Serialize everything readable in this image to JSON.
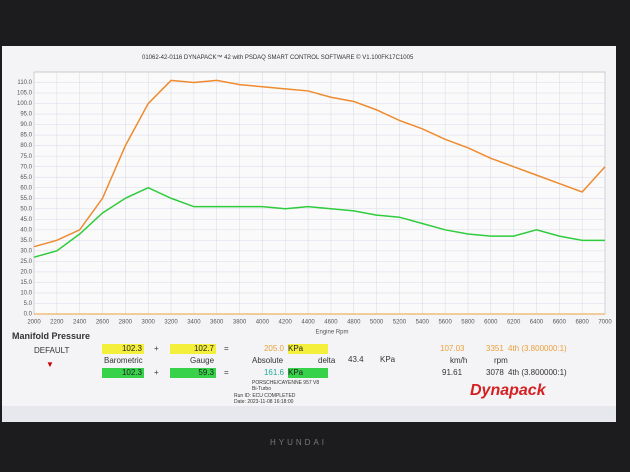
{
  "window": {
    "title": "01062-42-0116 DYNAPACK™ 42 with PSDAQ SMART CONTROL SOFTWARE © V1.100FK17C1005",
    "brand": "HYUNDAI"
  },
  "chart_data": {
    "type": "line",
    "x_label": "Engine Rpm",
    "x": [
      2000,
      2200,
      2400,
      2600,
      2800,
      3000,
      3200,
      3400,
      3600,
      3800,
      4000,
      4200,
      4400,
      4600,
      4800,
      5000,
      5200,
      5400,
      5600,
      5800,
      6000,
      6200,
      6400,
      6600,
      6800,
      7000
    ],
    "series": [
      {
        "name": "Absolute",
        "color": "#ef8a2e",
        "values": [
          32,
          35,
          40,
          55,
          80,
          100,
          111,
          110,
          111,
          109,
          108,
          107,
          106,
          103,
          101,
          97,
          92,
          88,
          83,
          79,
          74,
          70,
          66,
          62,
          58,
          70
        ]
      },
      {
        "name": "Gauge",
        "color": "#2fcc3c",
        "values": [
          27,
          30,
          38,
          48,
          55,
          60,
          55,
          51,
          51,
          51,
          51,
          50,
          51,
          50,
          49,
          47,
          46,
          43,
          40,
          38,
          37,
          37,
          40,
          37,
          35,
          35
        ]
      }
    ],
    "xlim": [
      2000,
      7000
    ],
    "xticks": [
      2000,
      2200,
      2400,
      2600,
      2800,
      3000,
      3200,
      3400,
      3600,
      3800,
      4000,
      4200,
      4400,
      4600,
      4800,
      5000,
      5200,
      5400,
      5600,
      5800,
      6000,
      6200,
      6400,
      6600,
      6800,
      7000
    ],
    "ylim": [
      0,
      115
    ],
    "yticks": [
      {
        "value": 0,
        "label": "0.0"
      },
      {
        "value": 5,
        "label": "5.0"
      },
      {
        "value": 10,
        "label": "10.0"
      },
      {
        "value": 15,
        "label": "15.0"
      },
      {
        "value": 20,
        "label": "20.0"
      },
      {
        "value": 25,
        "label": "25.0"
      },
      {
        "value": 30,
        "label": "30.0"
      },
      {
        "value": 35,
        "label": "35.0"
      },
      {
        "value": 40,
        "label": "40.0"
      },
      {
        "value": 45,
        "label": "45.0"
      },
      {
        "value": 50,
        "label": "50.0"
      },
      {
        "value": 55,
        "label": "55.0"
      },
      {
        "value": 60,
        "label": "60.0"
      },
      {
        "value": 65,
        "label": "65.0"
      },
      {
        "value": 70,
        "label": "70.0"
      },
      {
        "value": 75,
        "label": "75.0"
      },
      {
        "value": 80,
        "label": "80.0"
      },
      {
        "value": 85,
        "label": "85.0"
      },
      {
        "value": 90,
        "label": "90.0"
      },
      {
        "value": 95,
        "label": "95.0"
      },
      {
        "value": 100,
        "label": "100.0"
      },
      {
        "value": 105,
        "label": "105.0"
      },
      {
        "value": 110,
        "label": "110.0"
      }
    ],
    "grid": true
  },
  "panel": {
    "title": "Manifold Pressure",
    "mode": "DEFAULT",
    "row1": [
      "102.3",
      "+",
      "102.7",
      "=",
      "205.0",
      "KPa"
    ],
    "labels": [
      "Barometric",
      "Gauge",
      "Absolute",
      "delta",
      "43.4",
      "KPa",
      "km/h",
      "rpm"
    ],
    "row2": [
      "102.3",
      "+",
      "59.3",
      "=",
      "161.6",
      "KPa"
    ],
    "speed": [
      "107.03",
      "91.61"
    ],
    "rpm": [
      "3351",
      "3078"
    ],
    "gear": [
      "4th (3.800000:1)",
      "4th (3.800000:1)"
    ],
    "vehicle": [
      "PORSCHE/CAYENNE 957 V8",
      "Bi-Turbo",
      "Run ID: ECU COMPLETED",
      "Date: 2023-11-08 16:18:00"
    ],
    "logo": "Dynapack"
  }
}
